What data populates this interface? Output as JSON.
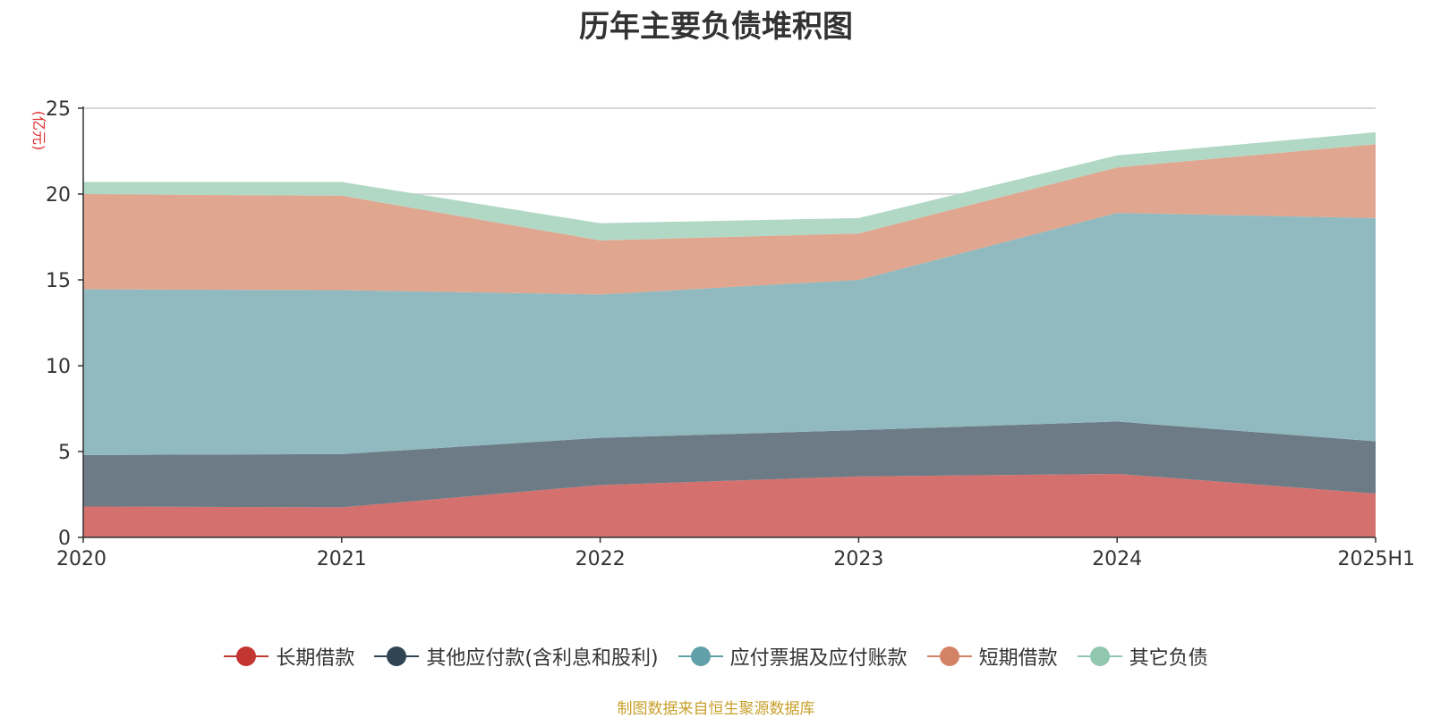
{
  "chart_data": {
    "type": "area",
    "stacked": true,
    "title": "历年主要负债堆积图",
    "ylabel": "(亿元)",
    "xlabel": "",
    "categories": [
      "2020",
      "2021",
      "2022",
      "2023",
      "2024",
      "2025H1"
    ],
    "ylim": [
      0,
      25
    ],
    "yticks": [
      0,
      5,
      10,
      15,
      20,
      25
    ],
    "grid": true,
    "legend_position": "bottom",
    "series": [
      {
        "name": "长期借款",
        "color": "#c23531",
        "fill": "#d4706d",
        "values": [
          1.8,
          1.75,
          3.05,
          3.55,
          3.7,
          2.55
        ]
      },
      {
        "name": "其他应付款(含利息和股利)",
        "color": "#2f4554",
        "fill": "#6d7b86",
        "values": [
          3.0,
          3.1,
          2.75,
          2.7,
          3.05,
          3.05
        ]
      },
      {
        "name": "应付票据及应付账款",
        "color": "#61a0a8",
        "fill": "#90bac0",
        "values": [
          9.65,
          9.55,
          8.35,
          8.75,
          12.15,
          13.0
        ]
      },
      {
        "name": "短期借款",
        "color": "#d48265",
        "fill": "#e0a68f",
        "values": [
          5.55,
          5.5,
          3.15,
          2.7,
          2.65,
          4.3
        ]
      },
      {
        "name": "其它负债",
        "color": "#91c7ae",
        "fill": "#b1d8c5",
        "values": [
          0.7,
          0.8,
          1.0,
          0.9,
          0.7,
          0.7
        ]
      }
    ]
  },
  "footer": {
    "source": "制图数据来自恒生聚源数据库"
  }
}
